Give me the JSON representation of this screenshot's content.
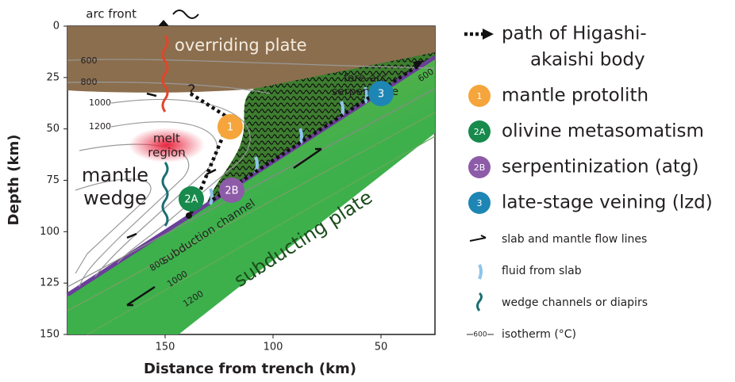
{
  "axes": {
    "y_title": "Depth (km)",
    "x_title": "Distance from trench (km)",
    "y_ticks": [
      0,
      25,
      50,
      75,
      100,
      125,
      150
    ],
    "x_ticks": [
      150,
      100,
      50
    ]
  },
  "annotations": {
    "arc_front": "arc front",
    "overriding_plate": "overriding plate",
    "fore_arc_serpentinite": [
      "fore-arc",
      "serpentinite"
    ],
    "melt_region": [
      "melt",
      "region"
    ],
    "mantle_wedge": [
      "mantle",
      "wedge"
    ],
    "subduction_channel": "subduction channel",
    "subducting_plate": "subducting plate",
    "question": "?"
  },
  "isotherms_wedge": [
    600,
    800,
    1000,
    1200
  ],
  "isotherms_slab": [
    600,
    800,
    1000,
    1200
  ],
  "stages": [
    {
      "label": "1",
      "color": "#f5a53b"
    },
    {
      "label": "2A",
      "color": "#178a4c"
    },
    {
      "label": "2B",
      "color": "#8d5ba8"
    },
    {
      "label": "3",
      "color": "#1e86b4"
    }
  ],
  "legend": {
    "path": [
      "path of Higashi-",
      "akaishi body"
    ],
    "stages": [
      "mantle protolith",
      "olivine metasomatism",
      "serpentinization (atg)",
      "late-stage veining (lzd)"
    ],
    "symbols": [
      "slab and mantle flow lines",
      "fluid from slab",
      "wedge channels or diapirs",
      "isotherm (°C)"
    ],
    "isotherm_sample": 600
  }
}
